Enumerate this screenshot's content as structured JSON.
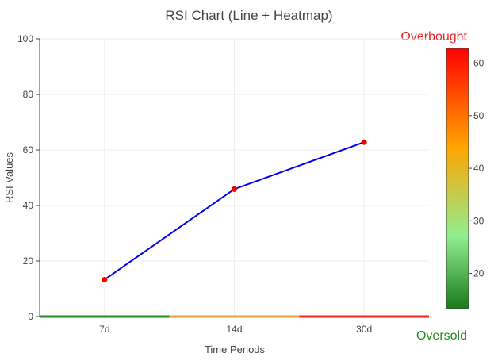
{
  "chart_data": {
    "type": "line",
    "title": "RSI Chart (Line + Heatmap)",
    "xlabel": "Time Periods",
    "ylabel": "RSI Values",
    "categories": [
      "7d",
      "14d",
      "30d"
    ],
    "series": [
      {
        "values": [
          13.3,
          45.9,
          62.8
        ],
        "line_color": "#0000ee",
        "marker_color": "#ee0000"
      }
    ],
    "ylim": [
      0,
      100
    ],
    "yticks": [
      0,
      20,
      40,
      60,
      80,
      100
    ],
    "grid": true,
    "heatmap": {
      "values": [
        13.3,
        45.9,
        62.8
      ],
      "colors": [
        "#228b22",
        "#e6a23c",
        "#ff2020"
      ],
      "colorbar": {
        "range": [
          13.3,
          62.8
        ],
        "ticks": [
          20,
          30,
          40,
          50,
          60
        ],
        "stops": [
          {
            "value": 13.3,
            "color": "#1a7a1a"
          },
          {
            "value": 27.0,
            "color": "#90ee90"
          },
          {
            "value": 44.0,
            "color": "#ffa500"
          },
          {
            "value": 62.8,
            "color": "#ff0000"
          }
        ]
      }
    },
    "annotations": {
      "top": {
        "text": "Overbought",
        "color": "#ee2222"
      },
      "bottom": {
        "text": "Oversold",
        "color": "#228b22"
      }
    }
  }
}
